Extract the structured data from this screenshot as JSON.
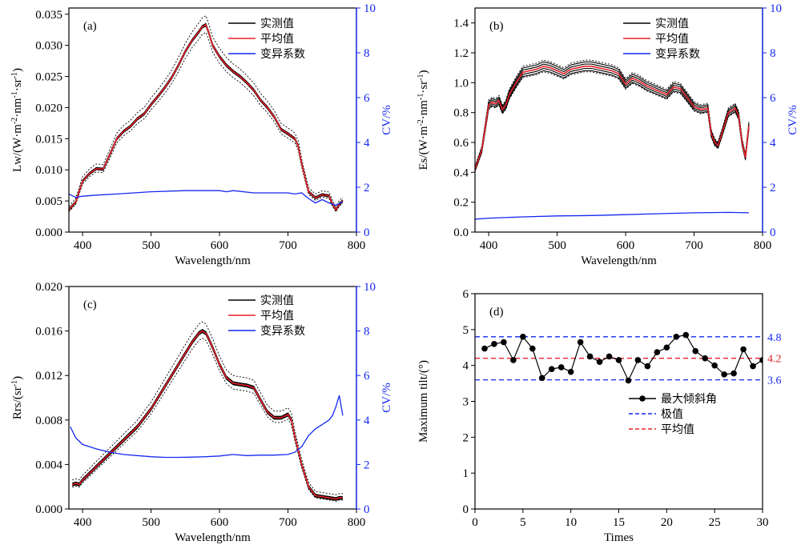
{
  "chart_data": [
    {
      "panel": "(a)",
      "type": "line",
      "xlabel": "Wavelength/nm",
      "ylabel": "Lw/(W·m⁻²·nm⁻¹·sr⁻¹)",
      "y2label": "CV/%",
      "xlim": [
        380,
        800
      ],
      "ylim": [
        0,
        0.036
      ],
      "y2lim": [
        0,
        10
      ],
      "xticks": [
        "400",
        "500",
        "600",
        "700",
        "800"
      ],
      "yticks": [
        "0.000",
        "0.005",
        "0.010",
        "0.015",
        "0.020",
        "0.025",
        "0.030",
        "0.035"
      ],
      "y2ticks": [
        "0",
        "2",
        "4",
        "6",
        "8",
        "10"
      ],
      "legend": [
        "实测值",
        "平均值",
        "变异系数"
      ],
      "legend_position": "top-right",
      "colors": {
        "measured": "#000000",
        "mean": "#e8202a",
        "cv": "#1428f0"
      },
      "series": [
        {
          "name": "实测值",
          "axis": "left",
          "spread": 0.00045,
          "x": [
            380,
            390,
            400,
            405,
            410,
            420,
            430,
            440,
            450,
            460,
            470,
            480,
            490,
            500,
            510,
            520,
            530,
            540,
            550,
            560,
            570,
            575,
            580,
            585,
            590,
            600,
            610,
            620,
            630,
            640,
            650,
            660,
            670,
            680,
            690,
            700,
            710,
            715,
            720,
            730,
            740,
            750,
            760,
            765,
            770,
            775,
            780
          ],
          "y": [
            0.0036,
            0.0048,
            0.0082,
            0.0088,
            0.0094,
            0.0102,
            0.0101,
            0.0125,
            0.015,
            0.0162,
            0.017,
            0.0182,
            0.019,
            0.0205,
            0.0218,
            0.0232,
            0.0248,
            0.0268,
            0.029,
            0.0308,
            0.0322,
            0.033,
            0.0333,
            0.0318,
            0.03,
            0.0282,
            0.0268,
            0.0258,
            0.025,
            0.024,
            0.0228,
            0.0212,
            0.02,
            0.0185,
            0.0165,
            0.0158,
            0.015,
            0.0138,
            0.011,
            0.0065,
            0.0055,
            0.006,
            0.0058,
            0.0045,
            0.0036,
            0.0045,
            0.005
          ]
        },
        {
          "name": "平均值",
          "axis": "left",
          "x": [
            380,
            390,
            400,
            405,
            410,
            420,
            430,
            440,
            450,
            460,
            470,
            480,
            490,
            500,
            510,
            520,
            530,
            540,
            550,
            560,
            570,
            575,
            580,
            585,
            590,
            600,
            610,
            620,
            630,
            640,
            650,
            660,
            670,
            680,
            690,
            700,
            710,
            715,
            720,
            730,
            740,
            750,
            760,
            765,
            770,
            775,
            780
          ],
          "y": [
            0.0036,
            0.0048,
            0.0082,
            0.0088,
            0.0094,
            0.0102,
            0.0101,
            0.0125,
            0.015,
            0.0162,
            0.017,
            0.0182,
            0.019,
            0.0205,
            0.0218,
            0.0232,
            0.0248,
            0.0268,
            0.029,
            0.0308,
            0.0322,
            0.033,
            0.0333,
            0.0318,
            0.03,
            0.0282,
            0.0268,
            0.0258,
            0.025,
            0.024,
            0.0228,
            0.0212,
            0.02,
            0.0185,
            0.0165,
            0.0158,
            0.015,
            0.0138,
            0.011,
            0.0065,
            0.0055,
            0.006,
            0.0058,
            0.0045,
            0.0036,
            0.0045,
            0.005
          ]
        },
        {
          "name": "变异系数",
          "axis": "right",
          "x": [
            380,
            390,
            400,
            420,
            450,
            500,
            550,
            600,
            610,
            620,
            650,
            700,
            710,
            720,
            730,
            740,
            750,
            760,
            770,
            780
          ],
          "y": [
            1.7,
            1.55,
            1.6,
            1.65,
            1.7,
            1.8,
            1.85,
            1.85,
            1.8,
            1.85,
            1.75,
            1.75,
            1.7,
            1.75,
            1.5,
            1.3,
            1.45,
            1.3,
            1.2,
            1.35
          ]
        }
      ]
    },
    {
      "panel": "(b)",
      "type": "line",
      "xlabel": "Wavelength/nm",
      "ylabel": "Es/(W·m⁻²·nm⁻¹·sr⁻¹)",
      "y2label": "CV/%",
      "xlim": [
        380,
        800
      ],
      "ylim": [
        0,
        1.5
      ],
      "y2lim": [
        0,
        10
      ],
      "xticks": [
        "400",
        "500",
        "600",
        "700",
        "800"
      ],
      "yticks": [
        "0.0",
        "0.2",
        "0.4",
        "0.6",
        "0.8",
        "1.0",
        "1.2",
        "1.4"
      ],
      "y2ticks": [
        "0",
        "2",
        "4",
        "6",
        "8",
        "10"
      ],
      "legend": [
        "实测值",
        "平均值",
        "变异系数"
      ],
      "legend_position": "top-right",
      "colors": {
        "measured": "#000000",
        "mean": "#e8202a",
        "cv": "#1428f0"
      },
      "series": [
        {
          "name": "实测值",
          "axis": "left",
          "spread": 0.008,
          "x": [
            380,
            390,
            400,
            405,
            410,
            415,
            420,
            425,
            430,
            440,
            450,
            460,
            470,
            480,
            490,
            500,
            510,
            520,
            530,
            540,
            550,
            560,
            570,
            580,
            590,
            600,
            610,
            620,
            630,
            640,
            650,
            660,
            670,
            680,
            690,
            700,
            710,
            720,
            725,
            730,
            735,
            740,
            750,
            760,
            765,
            770,
            775,
            780
          ],
          "y": [
            0.42,
            0.55,
            0.85,
            0.87,
            0.86,
            0.88,
            0.82,
            0.85,
            0.92,
            1.0,
            1.07,
            1.08,
            1.09,
            1.11,
            1.1,
            1.08,
            1.06,
            1.09,
            1.1,
            1.11,
            1.11,
            1.1,
            1.09,
            1.08,
            1.06,
            0.99,
            1.03,
            1.01,
            0.98,
            0.96,
            0.94,
            0.92,
            0.97,
            0.96,
            0.9,
            0.84,
            0.82,
            0.83,
            0.66,
            0.6,
            0.58,
            0.65,
            0.8,
            0.83,
            0.78,
            0.6,
            0.5,
            0.71
          ]
        },
        {
          "name": "平均值",
          "axis": "left",
          "x": [
            380,
            390,
            400,
            405,
            410,
            415,
            420,
            425,
            430,
            440,
            450,
            460,
            470,
            480,
            490,
            500,
            510,
            520,
            530,
            540,
            550,
            560,
            570,
            580,
            590,
            600,
            610,
            620,
            630,
            640,
            650,
            660,
            670,
            680,
            690,
            700,
            710,
            720,
            725,
            730,
            735,
            740,
            750,
            760,
            765,
            770,
            775,
            780
          ],
          "y": [
            0.42,
            0.55,
            0.85,
            0.87,
            0.86,
            0.88,
            0.82,
            0.85,
            0.92,
            1.0,
            1.07,
            1.08,
            1.09,
            1.11,
            1.1,
            1.08,
            1.06,
            1.09,
            1.1,
            1.11,
            1.11,
            1.1,
            1.09,
            1.08,
            1.06,
            0.99,
            1.03,
            1.01,
            0.98,
            0.96,
            0.94,
            0.92,
            0.97,
            0.96,
            0.9,
            0.84,
            0.82,
            0.83,
            0.66,
            0.6,
            0.58,
            0.65,
            0.8,
            0.83,
            0.78,
            0.6,
            0.5,
            0.71
          ]
        },
        {
          "name": "变异系数",
          "axis": "right",
          "x": [
            380,
            400,
            450,
            500,
            550,
            600,
            650,
            700,
            750,
            780
          ],
          "y": [
            0.58,
            0.62,
            0.68,
            0.72,
            0.74,
            0.78,
            0.82,
            0.86,
            0.88,
            0.86
          ]
        }
      ]
    },
    {
      "panel": "(c)",
      "type": "line",
      "xlabel": "Wavelength/nm",
      "ylabel": "Rrs/(sr⁻¹)",
      "y2label": "CV/%",
      "xlim": [
        380,
        800
      ],
      "ylim": [
        0,
        0.02
      ],
      "y2lim": [
        0,
        10
      ],
      "xticks": [
        "400",
        "500",
        "600",
        "700",
        "800"
      ],
      "yticks": [
        "0.000",
        "0.004",
        "0.008",
        "0.012",
        "0.016",
        "0.020"
      ],
      "y2ticks": [
        "0",
        "2",
        "4",
        "6",
        "8",
        "10"
      ],
      "legend": [
        "实测值",
        "平均值",
        "变异系数"
      ],
      "legend_position": "top-right",
      "colors": {
        "measured": "#000000",
        "mean": "#e8202a",
        "cv": "#1428f0"
      },
      "series": [
        {
          "name": "实测值",
          "axis": "left",
          "spread": 0.00035,
          "x": [
            385,
            390,
            395,
            400,
            420,
            440,
            460,
            480,
            500,
            520,
            540,
            560,
            570,
            575,
            580,
            585,
            590,
            600,
            610,
            620,
            630,
            640,
            650,
            660,
            670,
            680,
            690,
            700,
            705,
            710,
            720,
            730,
            740,
            750,
            760,
            770,
            775,
            780
          ],
          "y": [
            0.0022,
            0.0023,
            0.0022,
            0.0026,
            0.0038,
            0.005,
            0.0062,
            0.0074,
            0.009,
            0.011,
            0.013,
            0.015,
            0.0158,
            0.016,
            0.0158,
            0.0152,
            0.0145,
            0.013,
            0.0118,
            0.0113,
            0.0112,
            0.0111,
            0.0109,
            0.0098,
            0.0087,
            0.0082,
            0.0082,
            0.0085,
            0.008,
            0.0065,
            0.004,
            0.002,
            0.0012,
            0.0011,
            0.001,
            0.0009,
            0.001,
            0.001
          ]
        },
        {
          "name": "平均值",
          "axis": "left",
          "x": [
            385,
            390,
            395,
            400,
            420,
            440,
            460,
            480,
            500,
            520,
            540,
            560,
            570,
            575,
            580,
            585,
            590,
            600,
            610,
            620,
            630,
            640,
            650,
            660,
            670,
            680,
            690,
            700,
            705,
            710,
            720,
            730,
            740,
            750,
            760,
            770,
            775,
            780
          ],
          "y": [
            0.0022,
            0.0023,
            0.0022,
            0.0026,
            0.0038,
            0.005,
            0.0062,
            0.0074,
            0.009,
            0.011,
            0.013,
            0.015,
            0.0158,
            0.016,
            0.0158,
            0.0152,
            0.0145,
            0.013,
            0.0118,
            0.0113,
            0.0112,
            0.0111,
            0.0109,
            0.0098,
            0.0087,
            0.0082,
            0.0082,
            0.0085,
            0.008,
            0.0065,
            0.004,
            0.002,
            0.0012,
            0.0011,
            0.001,
            0.0009,
            0.001,
            0.001
          ]
        },
        {
          "name": "变异系数",
          "axis": "right",
          "x": [
            382,
            390,
            400,
            420,
            440,
            460,
            480,
            500,
            520,
            540,
            560,
            580,
            600,
            620,
            640,
            660,
            680,
            700,
            710,
            720,
            730,
            740,
            750,
            760,
            765,
            770,
            775,
            780
          ],
          "y": [
            3.7,
            3.2,
            2.9,
            2.7,
            2.55,
            2.45,
            2.4,
            2.35,
            2.32,
            2.32,
            2.33,
            2.35,
            2.38,
            2.45,
            2.4,
            2.42,
            2.42,
            2.45,
            2.55,
            2.8,
            3.3,
            3.6,
            3.8,
            4.0,
            4.2,
            4.6,
            5.1,
            4.2
          ]
        }
      ]
    },
    {
      "panel": "(d)",
      "type": "line",
      "xlabel": "Times",
      "ylabel": "Maximum tilt/(°)",
      "xlim": [
        0,
        30
      ],
      "ylim": [
        0,
        6
      ],
      "xticks": [
        "0",
        "5",
        "10",
        "15",
        "20",
        "25",
        "30"
      ],
      "yticks": [
        "0",
        "1",
        "2",
        "3",
        "4",
        "5",
        "6"
      ],
      "legend": [
        "最大倾斜角",
        "极值",
        "平均值"
      ],
      "legend_position": "center-right",
      "colors": {
        "tilt": "#000000",
        "extreme": "#1428f0",
        "mean": "#e8202a"
      },
      "series": [
        {
          "name": "最大倾斜角",
          "x": [
            1,
            2,
            3,
            4,
            5,
            6,
            7,
            8,
            9,
            10,
            11,
            12,
            13,
            14,
            15,
            16,
            17,
            18,
            19,
            20,
            21,
            22,
            23,
            24,
            25,
            26,
            27,
            28,
            29,
            30
          ],
          "y": [
            4.47,
            4.6,
            4.65,
            4.15,
            4.8,
            4.47,
            3.65,
            3.9,
            3.95,
            3.82,
            4.65,
            4.25,
            4.1,
            4.25,
            4.15,
            3.58,
            4.15,
            3.98,
            4.37,
            4.5,
            4.8,
            4.85,
            4.4,
            4.2,
            4.0,
            3.75,
            3.78,
            4.45,
            3.98,
            4.15
          ]
        }
      ],
      "reference_lines": [
        {
          "name": "极值",
          "value": 4.8,
          "label": "4.8",
          "color": "#1428f0"
        },
        {
          "name": "平均值",
          "value": 4.2,
          "label": "4.2",
          "color": "#e8202a"
        },
        {
          "name": "极值",
          "value": 3.6,
          "label": "3.6",
          "color": "#1428f0"
        }
      ]
    }
  ]
}
